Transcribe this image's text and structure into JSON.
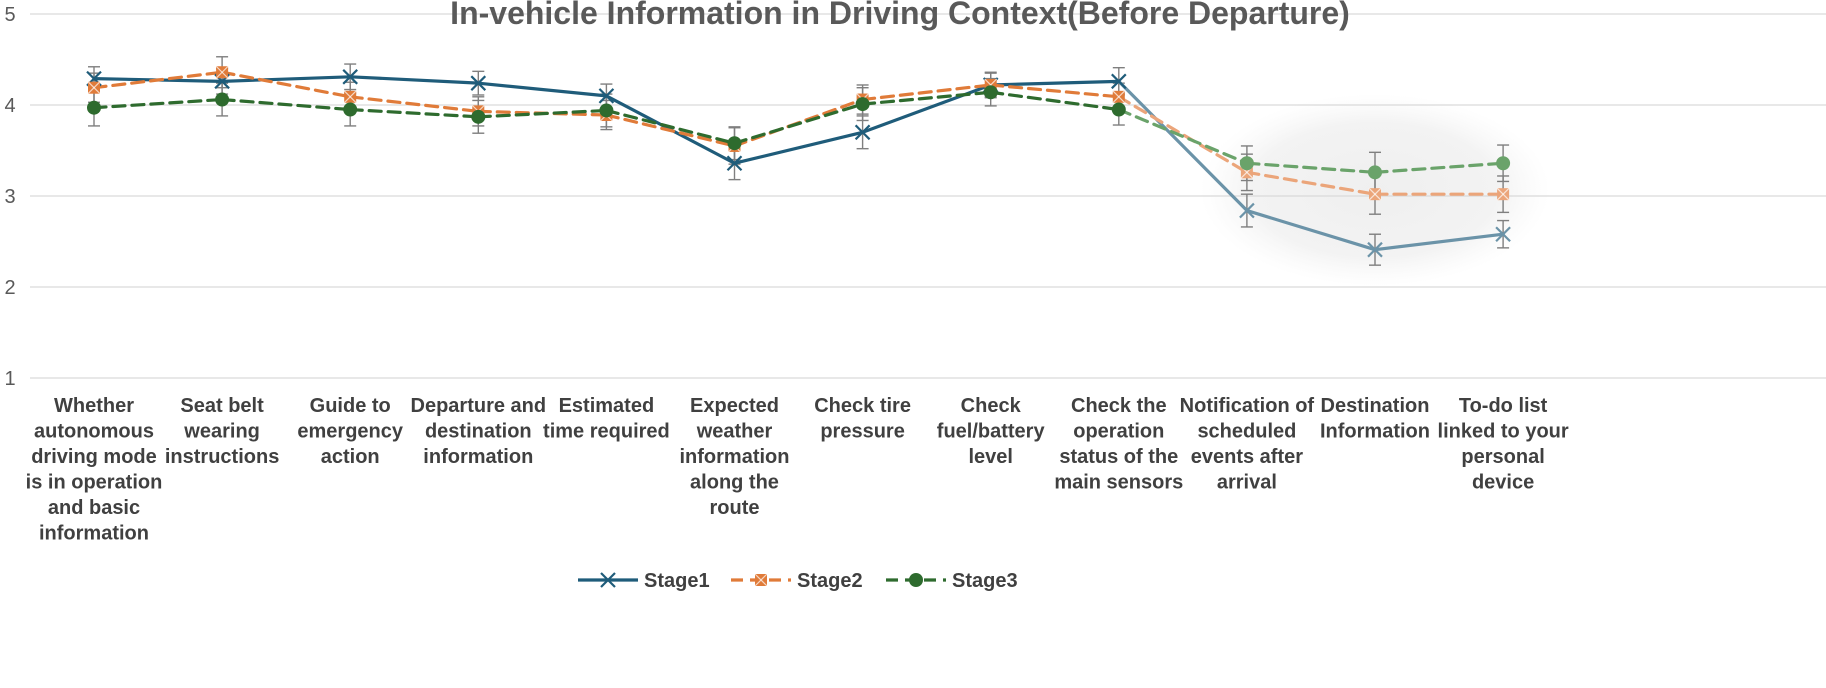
{
  "chart_data": {
    "type": "line",
    "title": "In-vehicle Information in Driving Context(Before Departure)",
    "xlabel": "",
    "ylabel": "",
    "ylim": [
      1,
      5
    ],
    "yticks": [
      "1",
      "2",
      "3",
      "4",
      "5"
    ],
    "grid": true,
    "legend_position": "bottom",
    "categories": [
      [
        "Whether",
        "autonomous",
        "driving mode",
        "is in operation",
        "and basic",
        "information"
      ],
      [
        "Seat belt",
        "wearing",
        "instructions"
      ],
      [
        "Guide to",
        "emergency",
        "action"
      ],
      [
        "Departure and",
        "destination",
        "information"
      ],
      [
        "Estimated",
        "time required"
      ],
      [
        "Expected",
        "weather",
        "information",
        "along the",
        "route"
      ],
      [
        "Check tire",
        "pressure"
      ],
      [
        "Check",
        "fuel/battery",
        "level"
      ],
      [
        "Check the",
        "operation",
        "status of the",
        "main sensors"
      ],
      [
        "Notification of",
        "scheduled",
        "events after",
        "arrival"
      ],
      [
        "Destination",
        "Information"
      ],
      [
        "To-do list",
        "linked to your",
        "personal",
        "device"
      ]
    ],
    "series": [
      {
        "name": "Stage1",
        "color": "#1f5c7a",
        "highlight_color": "#6b93a8",
        "marker": "x",
        "dash": "solid",
        "values": [
          4.29,
          4.26,
          4.31,
          4.24,
          4.1,
          3.36,
          3.7,
          4.22,
          4.26,
          2.84,
          2.41,
          2.58
        ],
        "errors": [
          0.13,
          0.14,
          0.14,
          0.13,
          0.13,
          0.18,
          0.18,
          0.14,
          0.15,
          0.18,
          0.17,
          0.15
        ]
      },
      {
        "name": "Stage2",
        "color": "#e07b39",
        "highlight_color": "#eba57a",
        "marker": "square-x",
        "dash": "dash",
        "values": [
          4.19,
          4.36,
          4.09,
          3.93,
          3.89,
          3.55,
          4.06,
          4.22,
          4.09,
          3.26,
          3.02,
          3.02
        ],
        "errors": [
          0.16,
          0.17,
          0.16,
          0.16,
          0.16,
          0.2,
          0.16,
          0.13,
          0.15,
          0.2,
          0.22,
          0.2
        ]
      },
      {
        "name": "Stage3",
        "color": "#2e6b2e",
        "highlight_color": "#6aa36a",
        "marker": "circle",
        "dash": "dash",
        "values": [
          3.97,
          4.06,
          3.95,
          3.87,
          3.94,
          3.58,
          4.01,
          4.14,
          3.95,
          3.36,
          3.26,
          3.36
        ],
        "errors": [
          0.2,
          0.18,
          0.18,
          0.18,
          0.18,
          0.18,
          0.18,
          0.15,
          0.17,
          0.19,
          0.22,
          0.2
        ]
      }
    ],
    "highlight_categories": [
      9,
      10,
      11
    ]
  }
}
